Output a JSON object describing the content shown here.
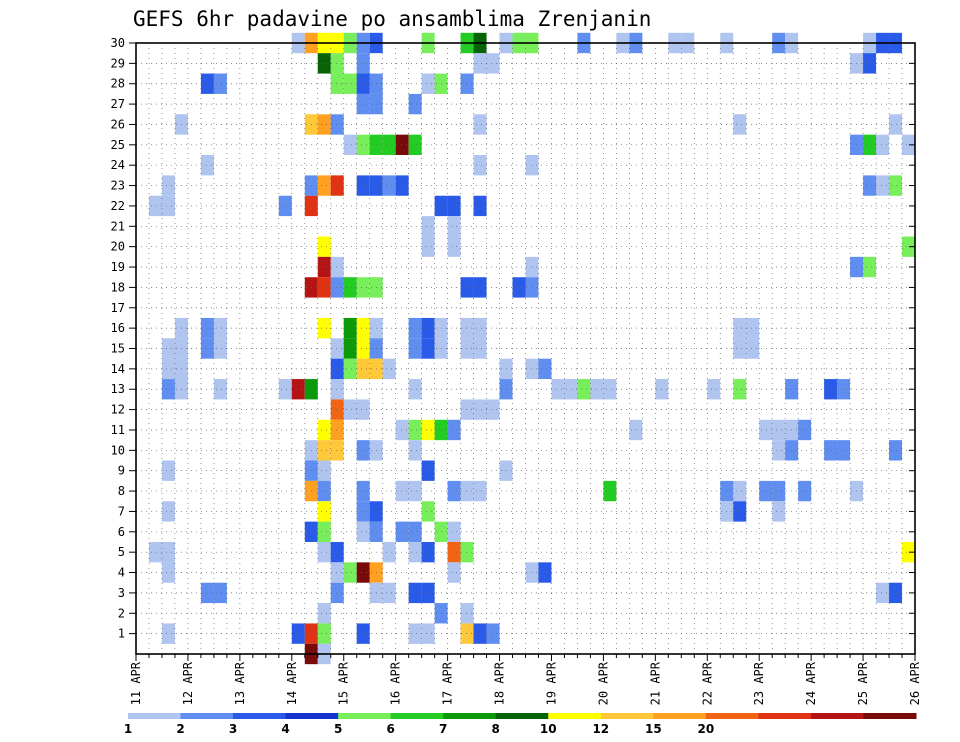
{
  "chart_data": {
    "type": "heatmap",
    "title": "GEFS 6hr padavine po ansamblima Zrenjanin",
    "x_tick_labels": [
      "11 APR",
      "12 APR",
      "13 APR",
      "14 APR",
      "15 APR",
      "16 APR",
      "17 APR",
      "18 APR",
      "19 APR",
      "20 APR",
      "21 APR",
      "22 APR",
      "23 APR",
      "24 APR",
      "25 APR",
      "26 APR"
    ],
    "x_range_days": [
      0,
      15
    ],
    "y_tick_labels": [
      "1",
      "2",
      "3",
      "4",
      "5",
      "6",
      "7",
      "8",
      "9",
      "10",
      "11",
      "12",
      "13",
      "14",
      "15",
      "16",
      "17",
      "18",
      "19",
      "20",
      "21",
      "22",
      "23",
      "24",
      "25",
      "26",
      "27",
      "28",
      "29",
      "30"
    ],
    "y_range": [
      0,
      30
    ],
    "grid": true,
    "colorbar": {
      "labels": [
        "1",
        "2",
        "3",
        "4",
        "5",
        "6",
        "7",
        "8",
        "10",
        "12",
        "15",
        "20"
      ],
      "colors": [
        "#b0c4f0",
        "#5f8ef0",
        "#2a5ae8",
        "#1432cc",
        "#78ee5a",
        "#22cc22",
        "#0a9a0a",
        "#066406",
        "#ffff00",
        "#ffc838",
        "#ffa020",
        "#f06414",
        "#e03214",
        "#b41414",
        "#780a0a"
      ]
    },
    "cells": [
      [
        30,
        3.0,
        1
      ],
      [
        30,
        3.25,
        11
      ],
      [
        30,
        3.5,
        9
      ],
      [
        30,
        3.75,
        9
      ],
      [
        30,
        4.0,
        5
      ],
      [
        30,
        4.25,
        2
      ],
      [
        30,
        4.5,
        3
      ],
      [
        30,
        5.5,
        5
      ],
      [
        30,
        6.25,
        6
      ],
      [
        30,
        6.5,
        8
      ],
      [
        30,
        7.0,
        1
      ],
      [
        30,
        7.25,
        5
      ],
      [
        30,
        7.5,
        5
      ],
      [
        30,
        8.5,
        2
      ],
      [
        30,
        9.25,
        1
      ],
      [
        30,
        9.5,
        2
      ],
      [
        30,
        10.25,
        1
      ],
      [
        30,
        10.5,
        1
      ],
      [
        30,
        11.25,
        1
      ],
      [
        30,
        12.25,
        2
      ],
      [
        30,
        12.5,
        1
      ],
      [
        30,
        14.0,
        1
      ],
      [
        30,
        14.25,
        3
      ],
      [
        30,
        14.5,
        3
      ],
      [
        29,
        3.5,
        8
      ],
      [
        29,
        3.75,
        5
      ],
      [
        29,
        4.25,
        2
      ],
      [
        29,
        6.5,
        1
      ],
      [
        29,
        6.75,
        1
      ],
      [
        29,
        13.75,
        1
      ],
      [
        29,
        14.0,
        3
      ],
      [
        28,
        1.25,
        3
      ],
      [
        28,
        1.5,
        2
      ],
      [
        28,
        3.75,
        5
      ],
      [
        28,
        4.0,
        5
      ],
      [
        28,
        4.25,
        3
      ],
      [
        28,
        4.5,
        2
      ],
      [
        28,
        5.5,
        1
      ],
      [
        28,
        5.75,
        5
      ],
      [
        28,
        6.25,
        2
      ],
      [
        27,
        4.25,
        2
      ],
      [
        27,
        4.5,
        2
      ],
      [
        27,
        5.25,
        2
      ],
      [
        26,
        0.75,
        1
      ],
      [
        26,
        3.25,
        10
      ],
      [
        26,
        3.5,
        11
      ],
      [
        26,
        3.75,
        2
      ],
      [
        26,
        6.5,
        1
      ],
      [
        26,
        11.5,
        1
      ],
      [
        26,
        14.5,
        1
      ],
      [
        25,
        4.0,
        1
      ],
      [
        25,
        4.25,
        5
      ],
      [
        25,
        4.5,
        6
      ],
      [
        25,
        4.75,
        6
      ],
      [
        25,
        5.0,
        15
      ],
      [
        25,
        5.25,
        6
      ],
      [
        25,
        13.75,
        2
      ],
      [
        25,
        14.0,
        6
      ],
      [
        25,
        14.25,
        1
      ],
      [
        25,
        14.75,
        1
      ],
      [
        24,
        1.25,
        1
      ],
      [
        24,
        6.5,
        1
      ],
      [
        24,
        7.5,
        1
      ],
      [
        23,
        0.5,
        1
      ],
      [
        23,
        3.25,
        2
      ],
      [
        23,
        3.5,
        11
      ],
      [
        23,
        3.75,
        13
      ],
      [
        23,
        4.25,
        3
      ],
      [
        23,
        4.5,
        3
      ],
      [
        23,
        4.75,
        2
      ],
      [
        23,
        5.0,
        3
      ],
      [
        23,
        14.0,
        2
      ],
      [
        23,
        14.25,
        1
      ],
      [
        23,
        14.5,
        5
      ],
      [
        22,
        0.25,
        1
      ],
      [
        22,
        0.5,
        1
      ],
      [
        22,
        2.75,
        2
      ],
      [
        22,
        3.25,
        13
      ],
      [
        22,
        5.75,
        3
      ],
      [
        22,
        6.0,
        3
      ],
      [
        22,
        6.5,
        3
      ],
      [
        21,
        5.5,
        1
      ],
      [
        21,
        6.0,
        1
      ],
      [
        20,
        3.5,
        9
      ],
      [
        20,
        5.5,
        1
      ],
      [
        20,
        6.0,
        1
      ],
      [
        20,
        14.75,
        5
      ],
      [
        19,
        3.5,
        14
      ],
      [
        19,
        3.75,
        1
      ],
      [
        19,
        7.5,
        1
      ],
      [
        19,
        13.75,
        2
      ],
      [
        19,
        14.0,
        5
      ],
      [
        18,
        3.25,
        14
      ],
      [
        18,
        3.5,
        13
      ],
      [
        18,
        3.75,
        2
      ],
      [
        18,
        4.0,
        6
      ],
      [
        18,
        4.25,
        5
      ],
      [
        18,
        4.5,
        5
      ],
      [
        18,
        6.25,
        3
      ],
      [
        18,
        6.5,
        3
      ],
      [
        18,
        7.25,
        3
      ],
      [
        18,
        7.5,
        2
      ],
      [
        16,
        0.75,
        1
      ],
      [
        16,
        1.25,
        2
      ],
      [
        16,
        1.5,
        1
      ],
      [
        16,
        3.5,
        9
      ],
      [
        16,
        4.0,
        7
      ],
      [
        16,
        4.25,
        9
      ],
      [
        16,
        4.5,
        1
      ],
      [
        16,
        5.25,
        2
      ],
      [
        16,
        5.5,
        3
      ],
      [
        16,
        5.75,
        1
      ],
      [
        16,
        6.25,
        1
      ],
      [
        16,
        6.5,
        1
      ],
      [
        16,
        11.5,
        1
      ],
      [
        16,
        11.75,
        1
      ],
      [
        15,
        0.5,
        1
      ],
      [
        15,
        0.75,
        1
      ],
      [
        15,
        1.25,
        2
      ],
      [
        15,
        1.5,
        1
      ],
      [
        15,
        3.75,
        1
      ],
      [
        15,
        4.0,
        7
      ],
      [
        15,
        4.25,
        9
      ],
      [
        15,
        4.5,
        2
      ],
      [
        15,
        5.25,
        2
      ],
      [
        15,
        5.5,
        3
      ],
      [
        15,
        5.75,
        1
      ],
      [
        15,
        6.25,
        1
      ],
      [
        15,
        6.5,
        1
      ],
      [
        15,
        11.5,
        1
      ],
      [
        15,
        11.75,
        1
      ],
      [
        14,
        0.5,
        1
      ],
      [
        14,
        0.75,
        1
      ],
      [
        14,
        3.75,
        3
      ],
      [
        14,
        4.0,
        5
      ],
      [
        14,
        4.25,
        10
      ],
      [
        14,
        4.5,
        10
      ],
      [
        14,
        4.75,
        1
      ],
      [
        14,
        7.0,
        1
      ],
      [
        14,
        7.5,
        1
      ],
      [
        14,
        7.75,
        2
      ],
      [
        13,
        0.5,
        2
      ],
      [
        13,
        0.75,
        1
      ],
      [
        13,
        1.5,
        1
      ],
      [
        13,
        2.75,
        1
      ],
      [
        13,
        3.0,
        14
      ],
      [
        13,
        3.25,
        7
      ],
      [
        13,
        3.75,
        1
      ],
      [
        13,
        5.25,
        1
      ],
      [
        13,
        7.0,
        2
      ],
      [
        13,
        8.0,
        1
      ],
      [
        13,
        8.25,
        1
      ],
      [
        13,
        8.5,
        5
      ],
      [
        13,
        8.75,
        1
      ],
      [
        13,
        9.0,
        1
      ],
      [
        13,
        10.0,
        1
      ],
      [
        13,
        11.0,
        1
      ],
      [
        13,
        11.5,
        5
      ],
      [
        13,
        12.5,
        2
      ],
      [
        13,
        13.25,
        3
      ],
      [
        13,
        13.5,
        2
      ],
      [
        12,
        3.75,
        12
      ],
      [
        12,
        4.0,
        1
      ],
      [
        12,
        4.25,
        1
      ],
      [
        12,
        6.25,
        1
      ],
      [
        12,
        6.5,
        1
      ],
      [
        12,
        6.75,
        1
      ],
      [
        11,
        3.5,
        9
      ],
      [
        11,
        3.75,
        11
      ],
      [
        11,
        5.0,
        1
      ],
      [
        11,
        5.25,
        5
      ],
      [
        11,
        5.5,
        9
      ],
      [
        11,
        5.75,
        6
      ],
      [
        11,
        6.0,
        2
      ],
      [
        11,
        9.5,
        1
      ],
      [
        11,
        12.0,
        1
      ],
      [
        11,
        12.25,
        1
      ],
      [
        11,
        12.5,
        1
      ],
      [
        11,
        12.75,
        2
      ],
      [
        10,
        3.25,
        1
      ],
      [
        10,
        3.5,
        10
      ],
      [
        10,
        3.75,
        10
      ],
      [
        10,
        4.25,
        2
      ],
      [
        10,
        4.5,
        1
      ],
      [
        10,
        5.25,
        1
      ],
      [
        10,
        12.25,
        1
      ],
      [
        10,
        12.5,
        2
      ],
      [
        10,
        13.25,
        2
      ],
      [
        10,
        13.5,
        2
      ],
      [
        10,
        14.5,
        2
      ],
      [
        9,
        0.5,
        1
      ],
      [
        9,
        3.25,
        2
      ],
      [
        9,
        3.5,
        1
      ],
      [
        9,
        5.5,
        3
      ],
      [
        9,
        7.0,
        1
      ],
      [
        8,
        3.25,
        11
      ],
      [
        8,
        3.5,
        2
      ],
      [
        8,
        4.25,
        2
      ],
      [
        8,
        5.0,
        1
      ],
      [
        8,
        5.25,
        1
      ],
      [
        8,
        6.0,
        2
      ],
      [
        8,
        6.25,
        1
      ],
      [
        8,
        6.5,
        1
      ],
      [
        8,
        9.0,
        6
      ],
      [
        8,
        11.25,
        2
      ],
      [
        8,
        11.5,
        1
      ],
      [
        8,
        12.0,
        2
      ],
      [
        8,
        12.25,
        2
      ],
      [
        8,
        12.75,
        2
      ],
      [
        8,
        13.75,
        1
      ],
      [
        7,
        0.5,
        1
      ],
      [
        7,
        3.5,
        9
      ],
      [
        7,
        4.25,
        2
      ],
      [
        7,
        4.5,
        3
      ],
      [
        7,
        5.5,
        5
      ],
      [
        7,
        11.25,
        1
      ],
      [
        7,
        11.5,
        3
      ],
      [
        7,
        12.25,
        1
      ],
      [
        6,
        3.25,
        3
      ],
      [
        6,
        3.5,
        5
      ],
      [
        6,
        4.25,
        1
      ],
      [
        6,
        4.5,
        2
      ],
      [
        6,
        5.0,
        2
      ],
      [
        6,
        5.25,
        2
      ],
      [
        6,
        5.75,
        5
      ],
      [
        6,
        6.0,
        1
      ],
      [
        5,
        0.25,
        1
      ],
      [
        5,
        0.5,
        1
      ],
      [
        5,
        3.5,
        1
      ],
      [
        5,
        3.75,
        3
      ],
      [
        5,
        4.75,
        1
      ],
      [
        5,
        5.25,
        1
      ],
      [
        5,
        5.5,
        3
      ],
      [
        5,
        6.0,
        12
      ],
      [
        5,
        6.25,
        5
      ],
      [
        5,
        14.75,
        9
      ],
      [
        4,
        0.5,
        1
      ],
      [
        4,
        3.75,
        1
      ],
      [
        4,
        4.0,
        5
      ],
      [
        4,
        4.25,
        15
      ],
      [
        4,
        4.5,
        11
      ],
      [
        4,
        6.0,
        1
      ],
      [
        4,
        7.5,
        1
      ],
      [
        4,
        7.75,
        3
      ],
      [
        3,
        1.25,
        2
      ],
      [
        3,
        1.5,
        2
      ],
      [
        3,
        3.75,
        2
      ],
      [
        3,
        4.5,
        1
      ],
      [
        3,
        4.75,
        1
      ],
      [
        3,
        5.25,
        3
      ],
      [
        3,
        5.5,
        3
      ],
      [
        3,
        14.25,
        1
      ],
      [
        3,
        14.5,
        3
      ],
      [
        2,
        3.5,
        1
      ],
      [
        2,
        5.75,
        2
      ],
      [
        2,
        6.25,
        1
      ],
      [
        1,
        0.5,
        1
      ],
      [
        1,
        3.0,
        3
      ],
      [
        1,
        3.25,
        13
      ],
      [
        1,
        3.5,
        5
      ],
      [
        1,
        4.25,
        3
      ],
      [
        1,
        5.25,
        1
      ],
      [
        1,
        5.5,
        1
      ],
      [
        1,
        6.25,
        10
      ],
      [
        1,
        6.5,
        3
      ],
      [
        1,
        6.75,
        2
      ],
      [
        0,
        3.25,
        15
      ],
      [
        0,
        3.5,
        1
      ]
    ]
  }
}
